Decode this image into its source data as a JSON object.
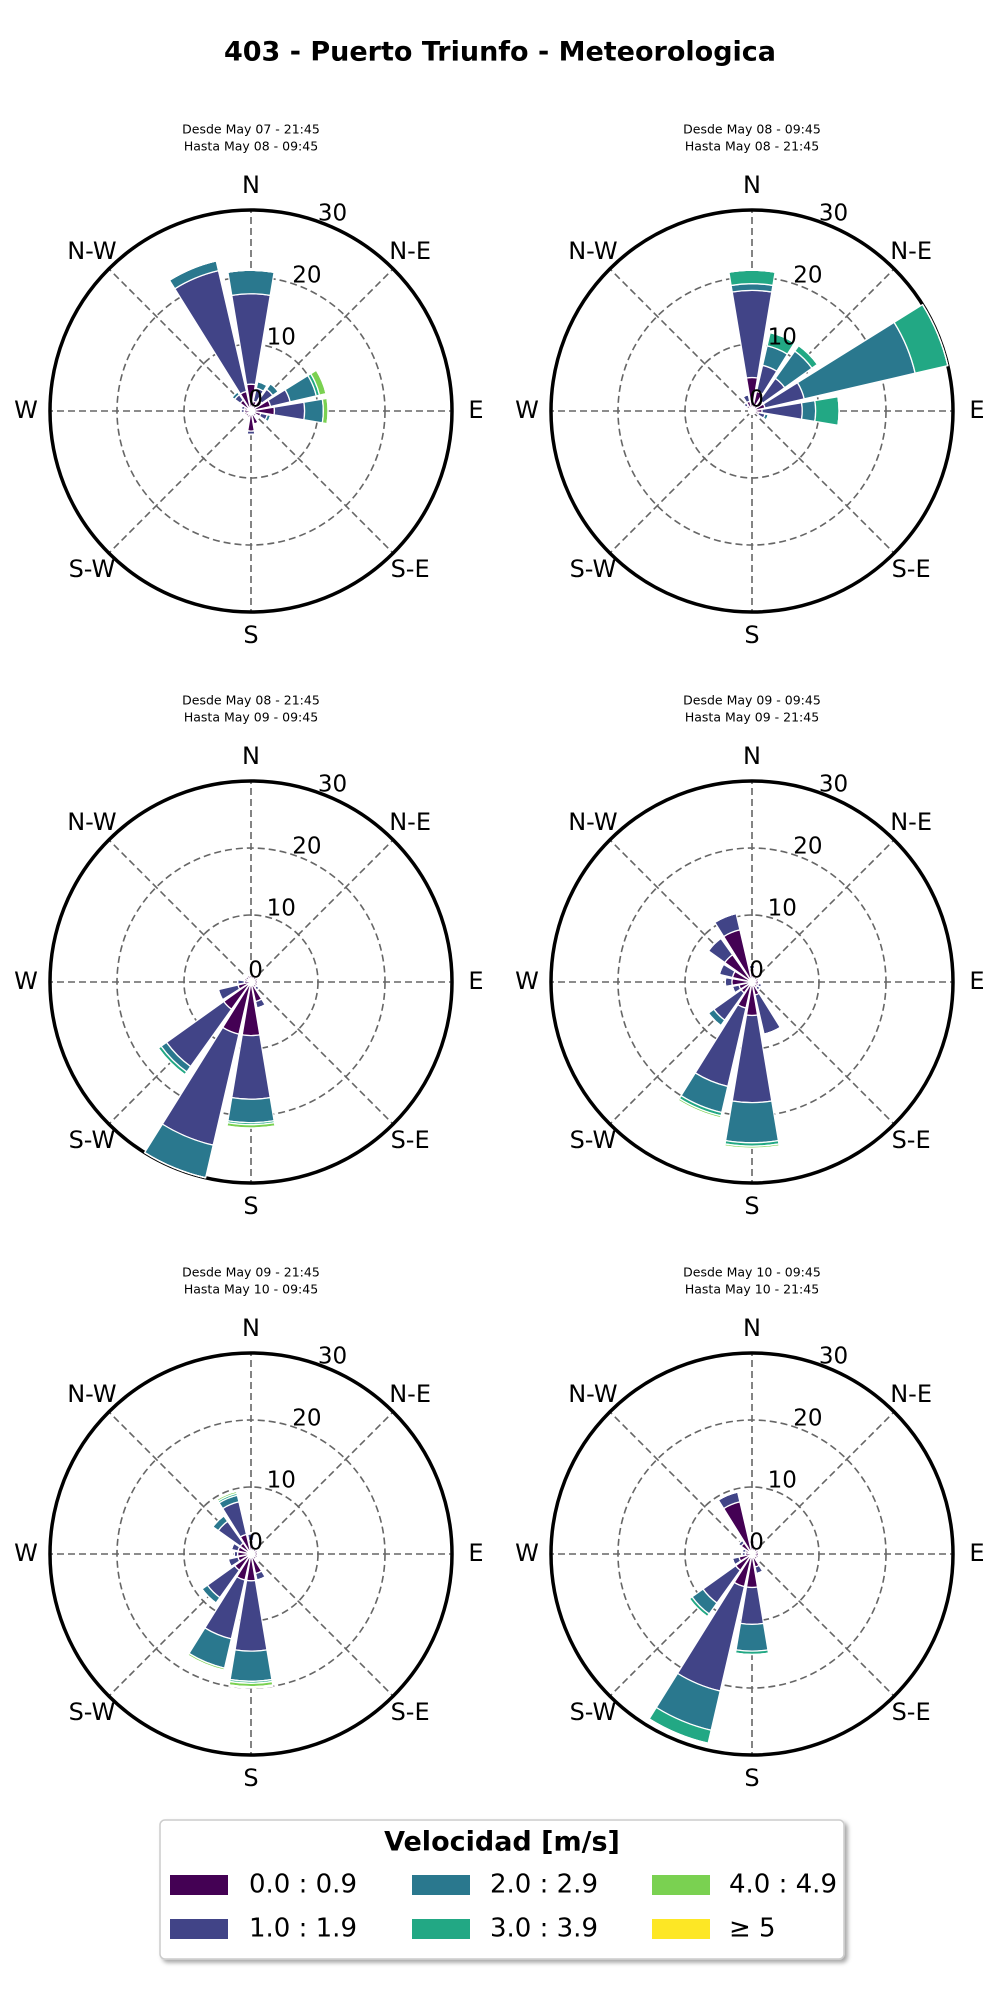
{
  "title": "403 - Puerto Triunfo - Meteorologica",
  "legend": {
    "title": "Velocidad [m/s]",
    "items": [
      {
        "name": "0.0 : 0.9",
        "color": "#440154"
      },
      {
        "name": "1.0 : 1.9",
        "color": "#414487"
      },
      {
        "name": "2.0 : 2.9",
        "color": "#2a788e"
      },
      {
        "name": "3.0 : 3.9",
        "color": "#22a884"
      },
      {
        "name": "4.0 : 4.9",
        "color": "#7ad151"
      },
      {
        "name": "≥ 5",
        "color": "#fde725"
      }
    ]
  },
  "chart_data": [
    {
      "type": "windrose",
      "subtitle": [
        "Desde May 07 - 21:45",
        "Hasta May 08 - 09:45"
      ],
      "categories": [
        "N",
        null,
        "N-E",
        null,
        "E",
        null,
        "S-E",
        null,
        "S",
        null,
        "S-W",
        null,
        "W",
        null,
        "N-W",
        null
      ],
      "rlim": [
        0,
        30
      ],
      "rticks": [
        0,
        10,
        20,
        30
      ],
      "series": [
        {
          "values": [
            4,
            1.5,
            2,
            3,
            3.5,
            1.5,
            1,
            2,
            3,
            1,
            1,
            1,
            1,
            1,
            2,
            3
          ]
        },
        {
          "values": [
            13.5,
            2,
            2,
            3,
            4.5,
            1,
            0,
            0,
            0.5,
            0,
            0,
            0,
            0.5,
            0.5,
            1,
            18.5
          ]
        },
        {
          "values": [
            3.5,
            1,
            1,
            4,
            2.8,
            0.5,
            0,
            0,
            0,
            0,
            0,
            0,
            0,
            0,
            0.5,
            1.5
          ]
        },
        {
          "values": [
            0,
            0,
            0,
            0.5,
            0,
            0,
            0,
            0,
            0,
            0,
            0,
            0,
            0,
            0,
            0,
            0
          ]
        },
        {
          "values": [
            0,
            0,
            0,
            1,
            0.7,
            0,
            0,
            0,
            0,
            0,
            0,
            0,
            0,
            0,
            0,
            0
          ]
        },
        {
          "values": [
            0,
            0,
            0,
            0,
            0,
            0,
            0,
            0,
            0,
            0,
            0,
            0,
            0,
            0,
            0,
            0
          ]
        }
      ]
    },
    {
      "type": "windrose",
      "subtitle": [
        "Desde May 08 - 09:45",
        "Hasta May 08 - 21:45"
      ],
      "categories": [
        "N",
        null,
        "N-E",
        null,
        "E",
        null,
        "S-E",
        null,
        "S",
        null,
        "S-W",
        null,
        "W",
        null,
        "N-W",
        null
      ],
      "rlim": [
        0,
        30
      ],
      "rticks": [
        0,
        10,
        20,
        30
      ],
      "series": [
        {
          "values": [
            5,
            3,
            2,
            2,
            1.5,
            1,
            0.5,
            0.5,
            0.5,
            0.5,
            0.5,
            0.5,
            0.5,
            0.5,
            1,
            1.5
          ]
        },
        {
          "values": [
            13,
            4,
            4,
            6,
            6,
            1,
            0,
            0,
            0,
            0,
            0,
            0,
            0,
            0,
            0.5,
            1
          ]
        },
        {
          "values": [
            1,
            3,
            5,
            17,
            2,
            0.5,
            0,
            0,
            0,
            0,
            0,
            0,
            0,
            0,
            0,
            0
          ]
        },
        {
          "values": [
            2,
            2,
            1,
            5,
            3.5,
            0,
            0,
            0,
            0,
            0,
            0,
            0,
            0,
            0,
            0,
            0
          ]
        },
        {
          "values": [
            0,
            0,
            0,
            0,
            0,
            0,
            0,
            0,
            0,
            0,
            0,
            0,
            0,
            0,
            0,
            0
          ]
        },
        {
          "values": [
            0,
            0,
            0,
            0,
            0,
            0,
            0,
            0,
            0,
            0,
            0,
            0,
            0,
            0,
            0,
            0
          ]
        }
      ]
    },
    {
      "type": "windrose",
      "subtitle": [
        "Desde May 08 - 21:45",
        "Hasta May 09 - 09:45"
      ],
      "categories": [
        "N",
        null,
        "N-E",
        null,
        "E",
        null,
        "S-E",
        null,
        "S",
        null,
        "S-W",
        null,
        "W",
        null,
        "N-W",
        null
      ],
      "rlim": [
        0,
        30
      ],
      "rticks": [
        0,
        10,
        20,
        30
      ],
      "series": [
        {
          "values": [
            1,
            1,
            1,
            1,
            1,
            1,
            1,
            3,
            8,
            8,
            5,
            2,
            1,
            1,
            1,
            1
          ]
        },
        {
          "values": [
            0,
            0,
            0,
            0,
            0,
            0,
            0.5,
            1,
            9.5,
            17,
            10.5,
            3,
            1,
            0,
            0,
            0
          ]
        },
        {
          "values": [
            0,
            0,
            0,
            0,
            0,
            0,
            0,
            0,
            3.5,
            5,
            1,
            0,
            0,
            0,
            0,
            0
          ]
        },
        {
          "values": [
            0,
            0,
            0,
            0,
            0,
            0,
            0,
            0,
            0.3,
            0,
            0.5,
            0,
            0,
            0,
            0,
            0
          ]
        },
        {
          "values": [
            0,
            0,
            0,
            0,
            0,
            0,
            0,
            0,
            0.5,
            0,
            0,
            0,
            0,
            0,
            0,
            0
          ]
        },
        {
          "values": [
            0,
            0,
            0,
            0,
            0,
            0,
            0,
            0,
            0,
            0,
            0,
            0,
            0,
            0,
            0,
            0
          ]
        }
      ]
    },
    {
      "type": "windrose",
      "subtitle": [
        "Desde May 09 - 09:45",
        "Hasta May 09 - 21:45"
      ],
      "categories": [
        "N",
        null,
        "N-E",
        null,
        "E",
        null,
        "S-E",
        null,
        "S",
        null,
        "S-W",
        null,
        "W",
        null,
        "N-W",
        null
      ],
      "rlim": [
        0,
        30
      ],
      "rticks": [
        0,
        10,
        20,
        30
      ],
      "series": [
        {
          "values": [
            2,
            1,
            1,
            1,
            1,
            1,
            1,
            2,
            5,
            4,
            2,
            2,
            3,
            3,
            5,
            8
          ]
        },
        {
          "values": [
            0.5,
            0,
            0,
            0,
            0,
            0.5,
            0.5,
            6,
            13,
            12,
            5,
            1,
            1,
            2,
            3,
            2.5
          ]
        },
        {
          "values": [
            0,
            0,
            0,
            0,
            0,
            0,
            0,
            0,
            6,
            4,
            1,
            0,
            0,
            0,
            0,
            0
          ]
        },
        {
          "values": [
            0,
            0,
            0,
            0,
            0,
            0,
            0,
            0,
            0.5,
            0.5,
            0,
            0,
            0,
            0,
            0,
            0
          ]
        },
        {
          "values": [
            0,
            0,
            0,
            0,
            0,
            0,
            0,
            0,
            0.3,
            0.3,
            0,
            0,
            0,
            0,
            0,
            0
          ]
        },
        {
          "values": [
            0,
            0,
            0,
            0,
            0,
            0,
            0,
            0,
            0,
            0,
            0,
            0,
            0,
            0,
            0,
            0
          ]
        }
      ]
    },
    {
      "type": "windrose",
      "subtitle": [
        "Desde May 09 - 21:45",
        "Hasta May 10 - 09:45"
      ],
      "categories": [
        "N",
        null,
        "N-E",
        null,
        "E",
        null,
        "S-E",
        null,
        "S",
        null,
        "S-W",
        null,
        "W",
        null,
        "N-W",
        null
      ],
      "rlim": [
        0,
        30
      ],
      "rticks": [
        0,
        10,
        20,
        30
      ],
      "series": [
        {
          "values": [
            2,
            1,
            1,
            1,
            1,
            1,
            1,
            3,
            4,
            4,
            3,
            2,
            2,
            2,
            2,
            3
          ]
        },
        {
          "values": [
            1,
            0,
            0,
            0,
            0,
            0,
            0,
            1,
            10.5,
            9,
            5,
            1.5,
            0.5,
            1,
            4,
            5
          ]
        },
        {
          "values": [
            0,
            0,
            0,
            0,
            0,
            0,
            0,
            0,
            4.5,
            4.5,
            1,
            0,
            0,
            0,
            1,
            1
          ]
        },
        {
          "values": [
            0,
            0,
            0,
            0,
            0,
            0,
            0,
            0,
            0.3,
            0,
            0,
            0,
            0,
            0,
            0,
            0.3
          ]
        },
        {
          "values": [
            0,
            0,
            0,
            0,
            0,
            0,
            0,
            0,
            0.5,
            0.3,
            0,
            0,
            0,
            0,
            0,
            0.3
          ]
        },
        {
          "values": [
            0,
            0,
            0,
            0,
            0,
            0,
            0,
            0,
            0.2,
            0,
            0,
            0,
            0,
            0,
            0,
            0
          ]
        }
      ]
    },
    {
      "type": "windrose",
      "subtitle": [
        "Desde May 10 - 09:45",
        "Hasta May 10 - 21:45"
      ],
      "categories": [
        "N",
        null,
        "N-E",
        null,
        "E",
        null,
        "S-E",
        null,
        "S",
        null,
        "S-W",
        null,
        "W",
        null,
        "N-W",
        null
      ],
      "rlim": [
        0,
        30
      ],
      "rticks": [
        0,
        10,
        20,
        30
      ],
      "series": [
        {
          "values": [
            2,
            1,
            1,
            1,
            1,
            1,
            1,
            2,
            5,
            5,
            3,
            2,
            1,
            1,
            2,
            8
          ]
        },
        {
          "values": [
            0,
            0,
            0,
            0,
            0,
            0,
            0,
            1,
            5.5,
            16,
            6,
            1,
            0.5,
            0.5,
            0.5,
            1.5
          ]
        },
        {
          "values": [
            0,
            0,
            0,
            0,
            0,
            0,
            0,
            0,
            4,
            6,
            2,
            0,
            0,
            0,
            0,
            0
          ]
        },
        {
          "values": [
            0,
            0,
            0,
            0,
            0,
            0,
            0,
            0,
            0.5,
            2,
            0.5,
            0,
            0,
            0,
            0,
            0
          ]
        },
        {
          "values": [
            0,
            0,
            0,
            0,
            0,
            0,
            0,
            0,
            0,
            0,
            0,
            0,
            0,
            0,
            0,
            0
          ]
        },
        {
          "values": [
            0,
            0,
            0,
            0,
            0,
            0,
            0,
            0,
            0,
            0,
            0,
            0,
            0,
            0,
            0,
            0
          ]
        }
      ]
    }
  ]
}
